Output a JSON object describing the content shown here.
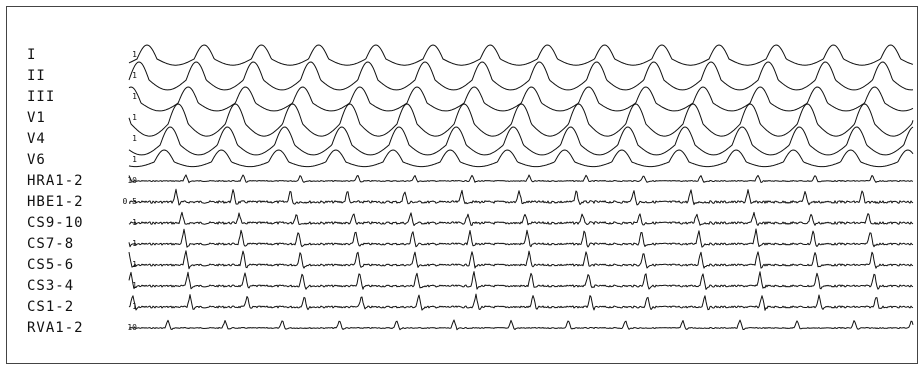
{
  "leads": [
    {
      "name": "I",
      "gain": "1"
    },
    {
      "name": "II",
      "gain": "1"
    },
    {
      "name": "III",
      "gain": "1"
    },
    {
      "name": "V1",
      "gain": "1"
    },
    {
      "name": "V4",
      "gain": "1"
    },
    {
      "name": "V6",
      "gain": "1"
    },
    {
      "name": "HRA1-2",
      "gain": "10"
    },
    {
      "name": "HBE1-2",
      "gain": "0.5"
    },
    {
      "name": "CS9-10",
      "gain": "1"
    },
    {
      "name": "CS7-8",
      "gain": "1"
    },
    {
      "name": "CS5-6",
      "gain": "1"
    },
    {
      "name": "CS3-4",
      "gain": "1"
    },
    {
      "name": "CS1-2",
      "gain": "1"
    },
    {
      "name": "RVA1-2",
      "gain": "10"
    }
  ],
  "colors": {
    "trace": "#111111",
    "background": "#ffffff",
    "border": "#444444"
  }
}
